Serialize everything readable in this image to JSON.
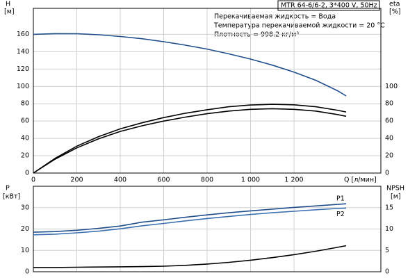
{
  "chart_data": [
    {
      "type": "line",
      "annotations": [
        "MTR 64-6/6-2, 3*400 V, 50Hz",
        "Перекачиваемая жидкость = Вода",
        "Температура перекачиваемой жидкости = 20 °C",
        "Плотность = 998.2 кг/м³"
      ],
      "ylabel": "H",
      "ylabel_unit": "[м]",
      "y2label": "eta",
      "y2label_unit": "[%]",
      "xlabel": "Q [л/мин]",
      "x": [
        0,
        100,
        200,
        300,
        400,
        500,
        600,
        700,
        800,
        900,
        1000,
        1100,
        1200,
        1300,
        1400,
        1440
      ],
      "xlim": [
        0,
        1600
      ],
      "xticks": [
        0,
        200,
        400,
        600,
        800,
        {
          "value": 1000,
          "label": "1 000"
        },
        {
          "value": 1200,
          "label": "1 200"
        }
      ],
      "ylim": [
        0,
        190
      ],
      "yticks": [
        0,
        20,
        40,
        60,
        80,
        100,
        120,
        140,
        160
      ],
      "y2lim": [
        0,
        190
      ],
      "y2ticks": [
        0,
        20,
        40,
        60,
        80,
        100
      ],
      "grid": true,
      "series": [
        {
          "color": "#1f4e8c",
          "values": [
            160,
            160.8,
            160.7,
            159.5,
            157.5,
            155,
            151.5,
            147.5,
            143,
            137.5,
            131.5,
            124.5,
            116.5,
            107,
            95,
            89
          ]
        },
        {
          "color": "#000000",
          "axis": "y2",
          "values": [
            0,
            17,
            31,
            42,
            51,
            58,
            64,
            69,
            73,
            76.5,
            78.5,
            79.3,
            78.7,
            76.5,
            72.5,
            70.5
          ]
        },
        {
          "color": "#000000",
          "axis": "y2",
          "values": [
            0,
            16,
            29,
            39.5,
            48,
            54.5,
            60,
            64.5,
            68.5,
            71.5,
            73.5,
            74.2,
            73.5,
            71.5,
            67.5,
            65.5
          ]
        }
      ]
    },
    {
      "type": "line",
      "ylabel": "P",
      "ylabel_unit": "[кВт]",
      "y2label": "NPSH",
      "y2label_unit": "[м]",
      "x": [
        0,
        100,
        200,
        300,
        400,
        500,
        600,
        700,
        800,
        900,
        1000,
        1100,
        1200,
        1300,
        1400,
        1440
      ],
      "xlim": [
        0,
        1600
      ],
      "xticks": [
        0,
        200,
        400,
        600,
        800,
        1000,
        1200
      ],
      "ylim": [
        0,
        40
      ],
      "yticks": [
        0,
        10,
        20,
        30
      ],
      "y2lim": [
        0,
        20
      ],
      "y2ticks": [
        0,
        5,
        10,
        15
      ],
      "grid": true,
      "series": [
        {
          "name": "P1",
          "color": "#1f4e8c",
          "values": [
            18.5,
            18.8,
            19.4,
            20.3,
            21.4,
            23.2,
            24.3,
            25.5,
            26.6,
            27.6,
            28.5,
            29.3,
            30.1,
            30.8,
            31.5,
            31.8
          ]
        },
        {
          "name": "P2",
          "color": "#3a70b0",
          "values": [
            17.3,
            17.6,
            18.2,
            19,
            20.1,
            21.5,
            22.6,
            23.8,
            24.9,
            25.9,
            26.8,
            27.6,
            28.3,
            29,
            29.6,
            29.8
          ]
        },
        {
          "color": "#000000",
          "axis": "y2",
          "values": [
            1,
            1,
            1.05,
            1.1,
            1.15,
            1.2,
            1.3,
            1.5,
            1.8,
            2.2,
            2.7,
            3.3,
            4.0,
            4.8,
            5.7,
            6.1
          ]
        }
      ]
    }
  ]
}
